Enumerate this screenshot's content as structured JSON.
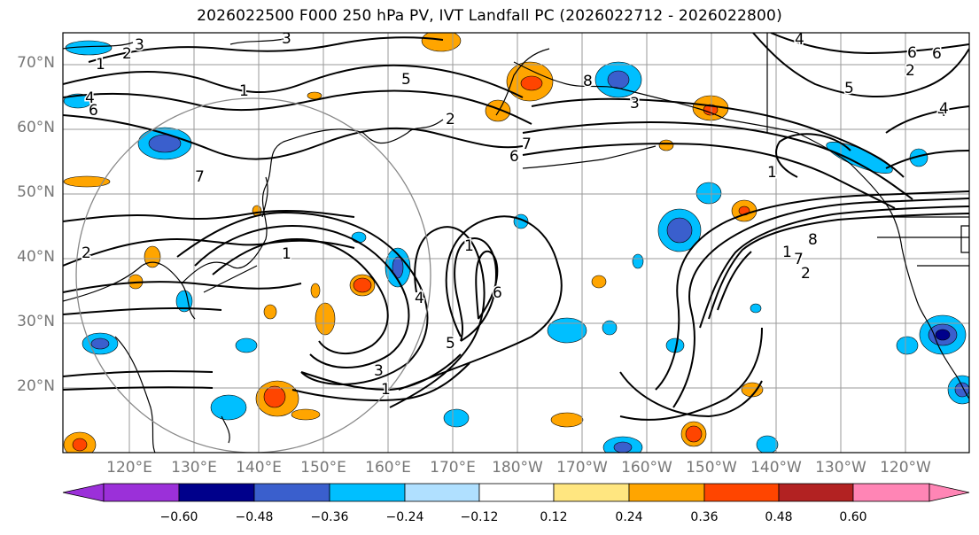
{
  "title": "2026022500 F000 250 hPa PV, IVT Landfall PC (2026022712 - 2026022800)",
  "lat_labels": [
    "70°N",
    "60°N",
    "50°N",
    "40°N",
    "30°N",
    "20°N"
  ],
  "lon_labels": [
    "120°E",
    "130°E",
    "140°E",
    "150°E",
    "160°E",
    "170°E",
    "180°W",
    "170°W",
    "160°W",
    "150°W",
    "140°W",
    "130°W",
    "120°W"
  ],
  "colorbar": {
    "tick_labels": [
      "−0.60",
      "−0.48",
      "−0.36",
      "−0.24",
      "−0.12",
      "0.12",
      "0.24",
      "0.36",
      "0.48",
      "0.60"
    ],
    "colors": [
      "#9b30d9",
      "#00008b",
      "#3a5fcd",
      "#00bfff",
      "#b0e0ff",
      "#ffffff",
      "#ffe680",
      "#ffa500",
      "#ff4500",
      "#b22222",
      "#ff85b5"
    ]
  },
  "contour_labels": [
    "2",
    "3",
    "3",
    "1",
    "4",
    "6",
    "1",
    "5",
    "7",
    "2",
    "8",
    "3",
    "6",
    "4",
    "5",
    "2",
    "7",
    "6",
    "1",
    "4",
    "4",
    "2",
    "1",
    "1",
    "6",
    "5",
    "3",
    "1",
    "8",
    "1",
    "7",
    "2",
    "6",
    "4"
  ]
}
